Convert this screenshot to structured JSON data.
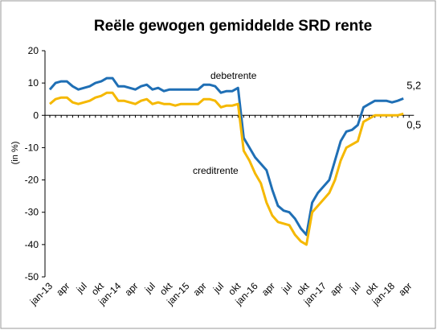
{
  "chart_data": {
    "type": "line",
    "title": "Reële gewogen gemiddelde SRD rente",
    "ylabel": "(in %)",
    "categories": [
      "jan-13",
      null,
      null,
      "apr",
      null,
      null,
      "jul",
      null,
      null,
      "okt",
      null,
      null,
      "jan-14",
      null,
      null,
      "apr",
      null,
      null,
      "jul",
      null,
      null,
      "okt",
      null,
      null,
      "jan-15",
      null,
      null,
      "apr",
      null,
      null,
      "jul",
      null,
      null,
      "okt",
      null,
      null,
      "jan-16",
      null,
      null,
      "apr",
      null,
      null,
      "jul",
      null,
      null,
      "okt",
      null,
      null,
      "jan-17",
      null,
      null,
      "apr",
      null,
      null,
      "jul",
      null,
      null,
      "okt",
      null,
      null,
      "jan-18",
      null,
      null,
      "apr"
    ],
    "series": [
      {
        "name": "debetrente",
        "color": "#1f6fb5",
        "values": [
          8,
          10,
          10.5,
          10.5,
          9,
          8,
          8.5,
          9,
          10,
          10.5,
          11.5,
          11.5,
          9,
          9,
          8.5,
          8,
          9,
          9.5,
          8,
          8.5,
          7.5,
          8,
          8,
          8,
          8,
          8,
          8,
          9.5,
          9.5,
          9,
          7,
          7.5,
          7.5,
          8.5,
          -7,
          -10,
          -13,
          -15,
          -17,
          -23,
          -28,
          -29.5,
          -30,
          -32,
          -35,
          -37,
          -27,
          -24,
          -22,
          -20,
          -14,
          -8,
          -5,
          -4.5,
          -3,
          2.5,
          3.5,
          4.5,
          4.5,
          4.5,
          4,
          4.5,
          5.2,
          null
        ],
        "value_labels": [
          null,
          null,
          null,
          null,
          null,
          null,
          null,
          null,
          null,
          null,
          null,
          null,
          null,
          null,
          null,
          null,
          null,
          null,
          null,
          null,
          null,
          null,
          null,
          null,
          null,
          null,
          null,
          null,
          null,
          null,
          null,
          null,
          null,
          null,
          null,
          null,
          null,
          null,
          null,
          null,
          null,
          null,
          null,
          null,
          null,
          null,
          null,
          null,
          null,
          null,
          null,
          null,
          null,
          null,
          null,
          null,
          null,
          null,
          null,
          null,
          null,
          null,
          "5,2",
          null
        ]
      },
      {
        "name": "creditrente",
        "color": "#f5b800",
        "values": [
          3.5,
          5,
          5.5,
          5.5,
          4,
          3.5,
          4,
          4.5,
          5.5,
          6,
          7,
          7,
          4.5,
          4.5,
          4,
          3.5,
          4.5,
          5,
          3.5,
          4,
          3.5,
          3.5,
          3,
          3.5,
          3.5,
          3.5,
          3.5,
          5,
          5,
          4.5,
          2.5,
          3,
          3,
          3.5,
          -11,
          -14,
          -18,
          -21,
          -27,
          -31,
          -33,
          -33.5,
          -34,
          -37,
          -39,
          -40,
          -30,
          -28,
          -26,
          -24,
          -20,
          -14,
          -10,
          -9,
          -8,
          -2,
          -1,
          0,
          0,
          0,
          0,
          0,
          0.5,
          null
        ],
        "value_labels": [
          null,
          null,
          null,
          null,
          null,
          null,
          null,
          null,
          null,
          null,
          null,
          null,
          null,
          null,
          null,
          null,
          null,
          null,
          null,
          null,
          null,
          null,
          null,
          null,
          null,
          null,
          null,
          null,
          null,
          null,
          null,
          null,
          null,
          null,
          null,
          null,
          null,
          null,
          null,
          null,
          null,
          null,
          null,
          null,
          null,
          null,
          null,
          null,
          null,
          null,
          null,
          null,
          null,
          null,
          null,
          null,
          null,
          null,
          null,
          null,
          null,
          null,
          "0,5",
          null
        ]
      }
    ],
    "ylim": [
      -50,
      20
    ],
    "yticks": [
      -50,
      -40,
      -30,
      -20,
      -10,
      0,
      10,
      20
    ],
    "grid": false
  }
}
